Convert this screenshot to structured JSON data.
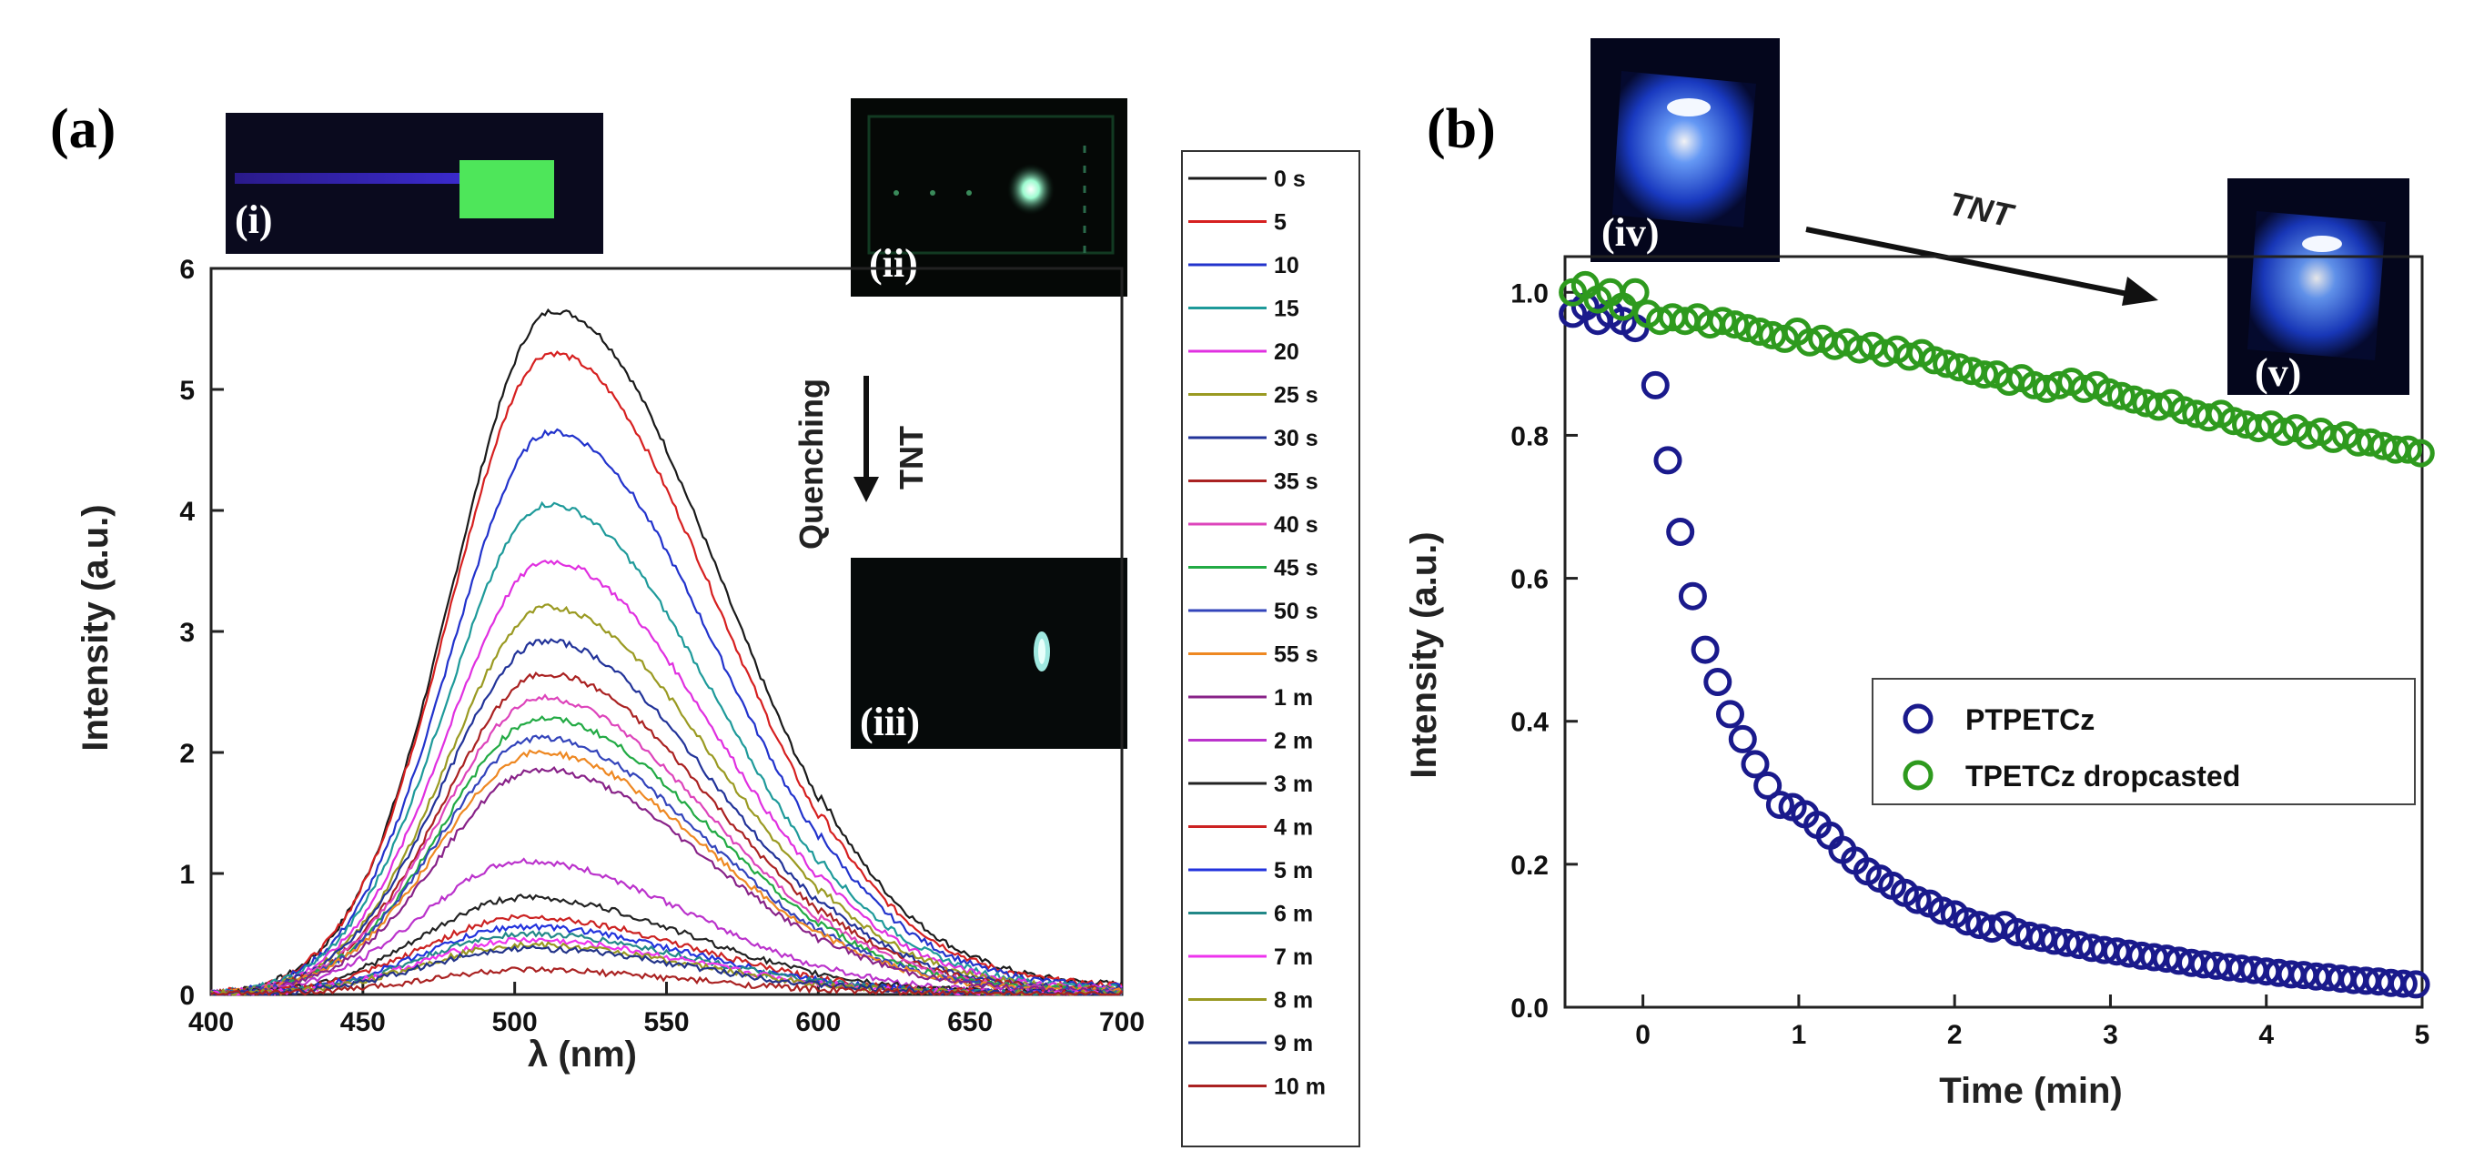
{
  "chart_data": [
    {
      "id": "a",
      "type": "line",
      "panel_label": "(a)",
      "xlabel": "λ (nm)",
      "ylabel": "Intensity (a.u.)",
      "xlim": [
        400,
        700
      ],
      "ylim": [
        0,
        6
      ],
      "xticks": [
        "400",
        "450",
        "500",
        "550",
        "600",
        "650",
        "700"
      ],
      "yticks": [
        "0",
        "1",
        "2",
        "3",
        "4",
        "5",
        "6"
      ],
      "series": [
        {
          "name": "0 s",
          "color": "#1a1a1a",
          "peak_x": 513,
          "peak_y": 5.65
        },
        {
          "name": "5",
          "color": "#d62020",
          "peak_x": 512,
          "peak_y": 5.3
        },
        {
          "name": "10",
          "color": "#2233cc",
          "peak_x": 512,
          "peak_y": 4.65
        },
        {
          "name": "15",
          "color": "#1e9a9a",
          "peak_x": 511,
          "peak_y": 4.05
        },
        {
          "name": "20",
          "color": "#e030e0",
          "peak_x": 511,
          "peak_y": 3.58
        },
        {
          "name": "25 s",
          "color": "#9a9a22",
          "peak_x": 511,
          "peak_y": 3.2
        },
        {
          "name": "30 s",
          "color": "#223399",
          "peak_x": 510,
          "peak_y": 2.92
        },
        {
          "name": "35 s",
          "color": "#aa2222",
          "peak_x": 510,
          "peak_y": 2.65
        },
        {
          "name": "40 s",
          "color": "#dd44bb",
          "peak_x": 509,
          "peak_y": 2.45
        },
        {
          "name": "45 s",
          "color": "#22aa44",
          "peak_x": 509,
          "peak_y": 2.28
        },
        {
          "name": "50 s",
          "color": "#3344bb",
          "peak_x": 508,
          "peak_y": 2.12
        },
        {
          "name": "55 s",
          "color": "#ee8822",
          "peak_x": 508,
          "peak_y": 2.0
        },
        {
          "name": "1 m",
          "color": "#882288",
          "peak_x": 508,
          "peak_y": 1.86
        },
        {
          "name": "2 m",
          "color": "#bb33cc",
          "peak_x": 503,
          "peak_y": 1.1
        },
        {
          "name": "3 m",
          "color": "#222222",
          "peak_x": 503,
          "peak_y": 0.8
        },
        {
          "name": "4 m",
          "color": "#cc2222",
          "peak_x": 503,
          "peak_y": 0.64
        },
        {
          "name": "5 m",
          "color": "#2233dd",
          "peak_x": 503,
          "peak_y": 0.56
        },
        {
          "name": "6 m",
          "color": "#228888",
          "peak_x": 503,
          "peak_y": 0.5
        },
        {
          "name": "7 m",
          "color": "#ee33ee",
          "peak_x": 503,
          "peak_y": 0.45
        },
        {
          "name": "8 m",
          "color": "#999922",
          "peak_x": 503,
          "peak_y": 0.41
        },
        {
          "name": "9 m",
          "color": "#223388",
          "peak_x": 503,
          "peak_y": 0.38
        },
        {
          "name": "10 m",
          "color": "#aa2222",
          "peak_x": 503,
          "peak_y": 0.2
        }
      ]
    },
    {
      "id": "b",
      "type": "scatter",
      "panel_label": "(b)",
      "xlabel": "Time (min)",
      "ylabel": "Intensity (a.u.)",
      "xlim": [
        -0.5,
        5
      ],
      "ylim": [
        0,
        1.05
      ],
      "xticks": [
        "0",
        "1",
        "2",
        "3",
        "4",
        "5"
      ],
      "yticks": [
        "0.0",
        "0.2",
        "0.4",
        "0.6",
        "0.8",
        "1.0"
      ],
      "series": [
        {
          "name": "PTPETCz",
          "color": "#1a1a8c",
          "x": [
            -0.45,
            -0.37,
            -0.29,
            -0.21,
            -0.13,
            -0.05,
            0.08,
            0.16,
            0.24,
            0.32,
            0.4,
            0.48,
            0.56,
            0.64,
            0.72,
            0.8,
            0.88,
            0.96,
            1.04,
            1.12,
            1.2,
            1.28,
            1.36,
            1.44,
            1.52,
            1.6,
            1.68,
            1.76,
            1.84,
            1.92,
            2.0,
            2.08,
            2.16,
            2.24,
            2.32,
            2.4,
            2.48,
            2.56,
            2.64,
            2.72,
            2.8,
            2.88,
            2.96,
            3.04,
            3.12,
            3.2,
            3.28,
            3.36,
            3.44,
            3.52,
            3.6,
            3.68,
            3.76,
            3.84,
            3.92,
            4.0,
            4.08,
            4.16,
            4.24,
            4.32,
            4.4,
            4.48,
            4.56,
            4.64,
            4.72,
            4.8,
            4.88,
            4.96
          ],
          "y": [
            0.97,
            0.98,
            0.96,
            0.97,
            0.96,
            0.95,
            0.87,
            0.765,
            0.665,
            0.575,
            0.5,
            0.455,
            0.41,
            0.375,
            0.34,
            0.31,
            0.283,
            0.28,
            0.27,
            0.255,
            0.24,
            0.22,
            0.205,
            0.19,
            0.18,
            0.17,
            0.16,
            0.15,
            0.145,
            0.135,
            0.13,
            0.12,
            0.115,
            0.11,
            0.115,
            0.105,
            0.1,
            0.097,
            0.093,
            0.09,
            0.087,
            0.083,
            0.08,
            0.078,
            0.075,
            0.072,
            0.07,
            0.068,
            0.065,
            0.062,
            0.06,
            0.058,
            0.056,
            0.054,
            0.052,
            0.05,
            0.048,
            0.046,
            0.045,
            0.043,
            0.042,
            0.04,
            0.038,
            0.037,
            0.036,
            0.034,
            0.033,
            0.032
          ]
        },
        {
          "name": "TPETCz dropcasted",
          "color": "#2e9a1e",
          "x": [
            -0.45,
            -0.37,
            -0.29,
            -0.21,
            -0.13,
            -0.05,
            0.03,
            0.11,
            0.19,
            0.27,
            0.35,
            0.43,
            0.51,
            0.59,
            0.67,
            0.75,
            0.83,
            0.91,
            0.99,
            1.07,
            1.15,
            1.23,
            1.31,
            1.39,
            1.47,
            1.55,
            1.63,
            1.71,
            1.79,
            1.87,
            1.95,
            2.03,
            2.11,
            2.19,
            2.27,
            2.35,
            2.43,
            2.51,
            2.59,
            2.67,
            2.75,
            2.83,
            2.91,
            2.99,
            3.07,
            3.15,
            3.23,
            3.31,
            3.39,
            3.47,
            3.55,
            3.63,
            3.71,
            3.79,
            3.87,
            3.95,
            4.03,
            4.11,
            4.19,
            4.27,
            4.35,
            4.43,
            4.51,
            4.59,
            4.67,
            4.75,
            4.83,
            4.91,
            4.99
          ],
          "y": [
            1.0,
            1.01,
            0.99,
            1.0,
            0.98,
            1.0,
            0.97,
            0.96,
            0.965,
            0.96,
            0.965,
            0.955,
            0.96,
            0.955,
            0.95,
            0.945,
            0.94,
            0.935,
            0.945,
            0.93,
            0.935,
            0.925,
            0.93,
            0.92,
            0.925,
            0.915,
            0.92,
            0.91,
            0.915,
            0.905,
            0.9,
            0.895,
            0.89,
            0.885,
            0.885,
            0.875,
            0.88,
            0.87,
            0.865,
            0.87,
            0.875,
            0.865,
            0.87,
            0.86,
            0.855,
            0.85,
            0.845,
            0.84,
            0.845,
            0.835,
            0.83,
            0.825,
            0.83,
            0.82,
            0.815,
            0.81,
            0.815,
            0.805,
            0.81,
            0.8,
            0.805,
            0.795,
            0.8,
            0.79,
            0.79,
            0.785,
            0.78,
            0.78,
            0.775
          ]
        }
      ]
    }
  ],
  "annotations": {
    "quenching": "Quenching",
    "tnt_a": "TNT",
    "tnt_b": "TNT"
  },
  "photos": {
    "i": "(i)",
    "ii": "(ii)",
    "iii": "(iii)",
    "iv": "(iv)",
    "v": "(v)"
  }
}
